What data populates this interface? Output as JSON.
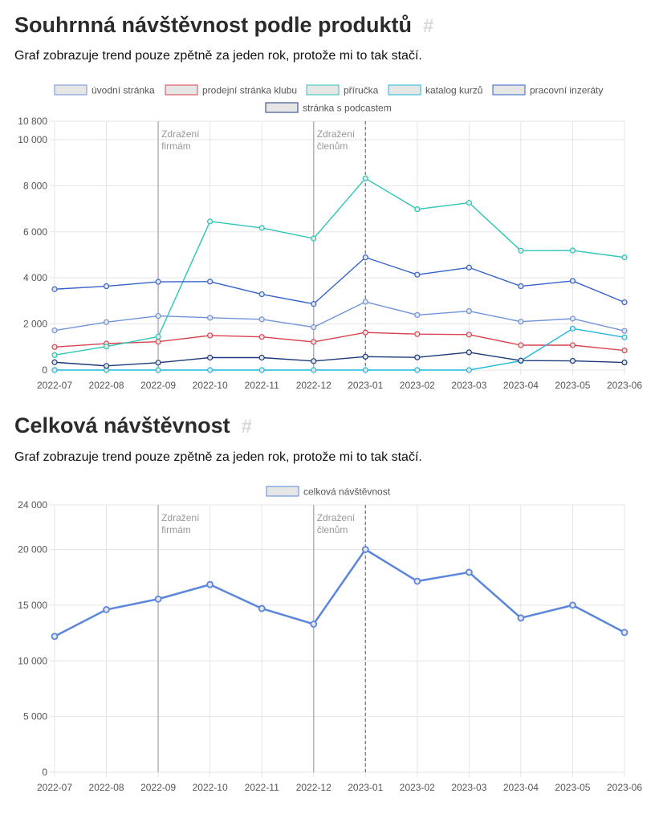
{
  "sections": [
    {
      "heading": "Souhrnná návštěvnost podle produktů",
      "anchor": "#",
      "subtitle": "Graf zobrazuje trend pouze zpětně za jeden rok, protože mi to tak stačí."
    },
    {
      "heading": "Celková návštěvnost",
      "anchor": "#",
      "subtitle": "Graf zobrazuje trend pouze zpětně za jeden rok, protože mi to tak stačí."
    }
  ],
  "chart_data": [
    {
      "type": "line",
      "categories": [
        "2022-07",
        "2022-08",
        "2022-09",
        "2022-10",
        "2022-11",
        "2022-12",
        "2023-01",
        "2023-02",
        "2023-03",
        "2023-04",
        "2023-05",
        "2023-06"
      ],
      "ylim": [
        0,
        10800
      ],
      "yticks": [
        0,
        2000,
        4000,
        6000,
        8000,
        10000,
        10800
      ],
      "ytick_labels": [
        "0",
        "2 000",
        "4 000",
        "6 000",
        "8 000",
        "10 000",
        "10 800"
      ],
      "grid": true,
      "legend_position": "top",
      "series": [
        {
          "name": "úvodní stránka",
          "color": "#6f93d9",
          "fill": "#e6e6e6",
          "values": [
            1720,
            2080,
            2350,
            2270,
            2200,
            1860,
            2960,
            2390,
            2560,
            2100,
            2230,
            1700
          ]
        },
        {
          "name": "prodejní stránka klubu",
          "color": "#d9434f",
          "fill": "#e6e6e6",
          "values": [
            1000,
            1150,
            1230,
            1500,
            1440,
            1220,
            1630,
            1560,
            1540,
            1080,
            1080,
            850
          ]
        },
        {
          "name": "příručka",
          "color": "#2dc5b6",
          "fill": "#e6e6e6",
          "values": [
            650,
            1020,
            1450,
            6450,
            6170,
            5710,
            8320,
            6980,
            7260,
            5180,
            5190,
            4890
          ]
        },
        {
          "name": "katalog kurzů",
          "color": "#1fb8d9",
          "fill": "#e6e6e6",
          "values": [
            0,
            0,
            0,
            0,
            0,
            0,
            0,
            0,
            0,
            400,
            1800,
            1420
          ]
        },
        {
          "name": "pracovní inzeráty",
          "color": "#3563c9",
          "fill": "#e6e6e6",
          "values": [
            3510,
            3640,
            3830,
            3840,
            3290,
            2870,
            4890,
            4140,
            4450,
            3640,
            3870,
            2940
          ]
        },
        {
          "name": "stránka s podcastem",
          "color": "#1b3a7a",
          "fill": "#e6e6e6",
          "values": [
            340,
            180,
            320,
            540,
            540,
            390,
            580,
            550,
            770,
            410,
            400,
            330
          ]
        }
      ],
      "annotations": [
        {
          "category": "2022-09",
          "lines": [
            "Zdražení",
            "firmám"
          ],
          "style": "solid"
        },
        {
          "category": "2022-12",
          "lines": [
            "Zdražení",
            "členům"
          ],
          "style": "solid"
        },
        {
          "category": "2023-01",
          "lines": [],
          "style": "dashed"
        }
      ]
    },
    {
      "type": "line",
      "categories": [
        "2022-07",
        "2022-08",
        "2022-09",
        "2022-10",
        "2022-11",
        "2022-12",
        "2023-01",
        "2023-02",
        "2023-03",
        "2023-04",
        "2023-05",
        "2023-06"
      ],
      "ylim": [
        0,
        24000
      ],
      "yticks": [
        0,
        5000,
        10000,
        15000,
        20000,
        24000
      ],
      "ytick_labels": [
        "0",
        "5 000",
        "10 000",
        "15 000",
        "20 000",
        "24 000"
      ],
      "grid": true,
      "legend_position": "top",
      "series": [
        {
          "name": "celková návštěvnost",
          "color": "#5b86db",
          "fill": "#e6e6e6",
          "width": 2.5,
          "values": [
            12200,
            14600,
            15550,
            16850,
            14700,
            13300,
            20000,
            17150,
            17950,
            13850,
            15000,
            12550
          ]
        }
      ],
      "annotations": [
        {
          "category": "2022-09",
          "lines": [
            "Zdražení",
            "firmám"
          ],
          "style": "solid"
        },
        {
          "category": "2022-12",
          "lines": [
            "Zdražení",
            "členům"
          ],
          "style": "solid"
        },
        {
          "category": "2023-01",
          "lines": [],
          "style": "dashed"
        }
      ]
    }
  ]
}
